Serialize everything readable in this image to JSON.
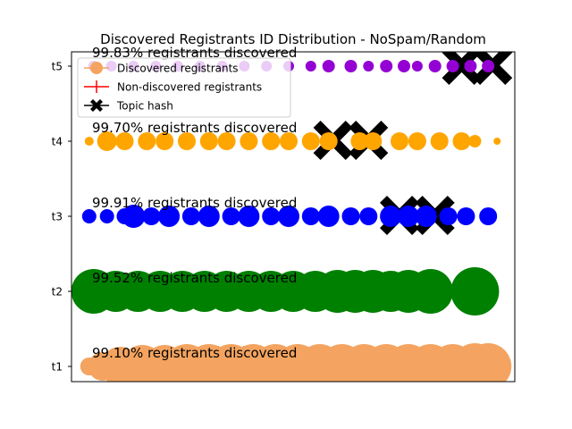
{
  "chart_data": {
    "type": "scatter",
    "title": "Discovered Registrants ID Distribution - NoSpam/Random",
    "xlabel": "",
    "ylabel": "",
    "x_ticks_visible": false,
    "xlim": [
      0,
      100
    ],
    "categories": [
      "t1",
      "t2",
      "t3",
      "t4",
      "t5"
    ],
    "legend": {
      "placement": "top-left",
      "entries": [
        {
          "label": "Discovered registrants",
          "marker": "circle",
          "color": "#f4a460"
        },
        {
          "label": "Non-discovered registrants",
          "marker": "plus",
          "color": "#ff0000"
        },
        {
          "label": "Topic hash",
          "marker": "x",
          "color": "#000000"
        }
      ]
    },
    "series": [
      {
        "topic": "t1",
        "color": "#f4a460",
        "annotation": "99.10% registrants discovered",
        "topic_hash_x": [
          36,
          44
        ],
        "registrants": [
          {
            "x": 4,
            "size": 1.0
          },
          {
            "x": 7,
            "size": 1.6
          },
          {
            "x": 11,
            "size": 2.2
          },
          {
            "x": 16,
            "size": 2.4
          },
          {
            "x": 21,
            "size": 2.4
          },
          {
            "x": 26,
            "size": 2.5
          },
          {
            "x": 31,
            "size": 2.5
          },
          {
            "x": 36,
            "size": 2.5
          },
          {
            "x": 41,
            "size": 2.5
          },
          {
            "x": 46,
            "size": 2.5
          },
          {
            "x": 51,
            "size": 2.5
          },
          {
            "x": 56,
            "size": 2.5
          },
          {
            "x": 61,
            "size": 2.5
          },
          {
            "x": 66,
            "size": 2.5
          },
          {
            "x": 71,
            "size": 2.5
          },
          {
            "x": 76,
            "size": 2.5
          },
          {
            "x": 81,
            "size": 2.5
          },
          {
            "x": 86,
            "size": 2.5
          },
          {
            "x": 91,
            "size": 2.6
          },
          {
            "x": 94,
            "size": 2.6
          }
        ]
      },
      {
        "topic": "t2",
        "color": "#008000",
        "annotation": "99.52% registrants discovered",
        "topic_hash_x": [
          70,
          78
        ],
        "registrants": [
          {
            "x": 5,
            "size": 2.5
          },
          {
            "x": 10,
            "size": 2.3
          },
          {
            "x": 15,
            "size": 2.3
          },
          {
            "x": 20,
            "size": 2.3
          },
          {
            "x": 25,
            "size": 2.3
          },
          {
            "x": 30,
            "size": 2.3
          },
          {
            "x": 35,
            "size": 2.3
          },
          {
            "x": 40,
            "size": 2.3
          },
          {
            "x": 45,
            "size": 2.3
          },
          {
            "x": 50,
            "size": 2.3
          },
          {
            "x": 55,
            "size": 2.3
          },
          {
            "x": 60,
            "size": 2.4
          },
          {
            "x": 64,
            "size": 2.4
          },
          {
            "x": 68,
            "size": 2.4
          },
          {
            "x": 72,
            "size": 2.3
          },
          {
            "x": 76,
            "size": 2.4
          },
          {
            "x": 81,
            "size": 2.5
          },
          {
            "x": 91,
            "size": 2.7
          }
        ]
      },
      {
        "topic": "t3",
        "color": "#0000ff",
        "annotation": "99.91% registrants discovered",
        "topic_hash_x": [
          74,
          82
        ],
        "registrants": [
          {
            "x": 4,
            "size": 0.8
          },
          {
            "x": 8,
            "size": 0.8
          },
          {
            "x": 12,
            "size": 0.9
          },
          {
            "x": 14,
            "size": 1.3
          },
          {
            "x": 18,
            "size": 1.0
          },
          {
            "x": 22,
            "size": 1.2
          },
          {
            "x": 27,
            "size": 1.0
          },
          {
            "x": 31,
            "size": 1.2
          },
          {
            "x": 36,
            "size": 1.0
          },
          {
            "x": 40,
            "size": 1.2
          },
          {
            "x": 45,
            "size": 1.0
          },
          {
            "x": 49,
            "size": 1.2
          },
          {
            "x": 54,
            "size": 1.0
          },
          {
            "x": 58,
            "size": 1.2
          },
          {
            "x": 63,
            "size": 1.0
          },
          {
            "x": 67,
            "size": 1.0
          },
          {
            "x": 72,
            "size": 1.2
          },
          {
            "x": 76,
            "size": 1.2
          },
          {
            "x": 80,
            "size": 1.2
          },
          {
            "x": 85,
            "size": 1.0
          },
          {
            "x": 89,
            "size": 1.0
          },
          {
            "x": 94,
            "size": 1.0
          }
        ]
      },
      {
        "topic": "t4",
        "color": "#ffa500",
        "annotation": "99.70% registrants discovered",
        "topic_hash_x": [
          59,
          67
        ],
        "registrants": [
          {
            "x": 4,
            "size": 0.5
          },
          {
            "x": 8,
            "size": 1.1
          },
          {
            "x": 12,
            "size": 1.0
          },
          {
            "x": 17,
            "size": 1.0
          },
          {
            "x": 21,
            "size": 1.0
          },
          {
            "x": 26,
            "size": 1.0
          },
          {
            "x": 31,
            "size": 1.0
          },
          {
            "x": 35,
            "size": 1.0
          },
          {
            "x": 40,
            "size": 1.0
          },
          {
            "x": 45,
            "size": 1.0
          },
          {
            "x": 49,
            "size": 1.0
          },
          {
            "x": 54,
            "size": 1.0
          },
          {
            "x": 58,
            "size": 1.0
          },
          {
            "x": 65,
            "size": 1.0
          },
          {
            "x": 68,
            "size": 1.0
          },
          {
            "x": 74,
            "size": 1.0
          },
          {
            "x": 78,
            "size": 1.0
          },
          {
            "x": 83,
            "size": 1.0
          },
          {
            "x": 88,
            "size": 1.0
          },
          {
            "x": 91,
            "size": 0.7
          },
          {
            "x": 96,
            "size": 0.4
          }
        ]
      },
      {
        "topic": "t5",
        "color": "#9400d3",
        "annotation": "99.83% registrants discovered",
        "topic_hash_x": [
          88,
          95
        ],
        "registrants": [
          {
            "x": 5,
            "size": 0.6
          },
          {
            "x": 9,
            "size": 0.6
          },
          {
            "x": 14,
            "size": 0.6
          },
          {
            "x": 19,
            "size": 0.6
          },
          {
            "x": 24,
            "size": 0.6
          },
          {
            "x": 29,
            "size": 0.6
          },
          {
            "x": 34,
            "size": 0.6
          },
          {
            "x": 39,
            "size": 0.6
          },
          {
            "x": 44,
            "size": 0.6
          },
          {
            "x": 49,
            "size": 0.6
          },
          {
            "x": 54,
            "size": 0.6
          },
          {
            "x": 58,
            "size": 0.7
          },
          {
            "x": 63,
            "size": 0.7
          },
          {
            "x": 67,
            "size": 0.6
          },
          {
            "x": 71,
            "size": 0.7
          },
          {
            "x": 75,
            "size": 0.7
          },
          {
            "x": 78,
            "size": 0.6
          },
          {
            "x": 82,
            "size": 0.7
          },
          {
            "x": 86,
            "size": 0.7
          },
          {
            "x": 90,
            "size": 0.7
          },
          {
            "x": 94,
            "size": 0.7
          }
        ]
      }
    ]
  }
}
